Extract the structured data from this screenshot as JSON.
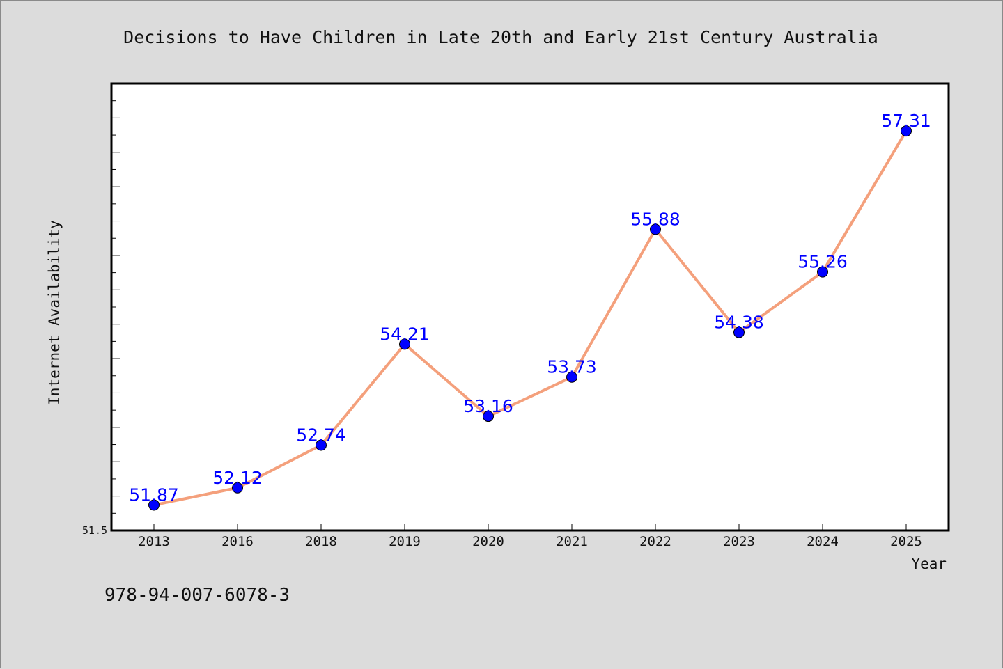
{
  "chart_data": {
    "type": "line",
    "title": "Decisions to Have Children in Late 20th and Early 21st Century Australia",
    "xlabel": "Year",
    "ylabel": "Internet Availability",
    "categories": [
      "2013",
      "2016",
      "2018",
      "2019",
      "2020",
      "2021",
      "2022",
      "2023",
      "2024",
      "2025"
    ],
    "series": [
      {
        "values": [
          51.87,
          52.12,
          52.74,
          54.21,
          53.16,
          53.73,
          55.88,
          54.38,
          55.26,
          57.31
        ],
        "labels": [
          "51.87",
          "52.12",
          "52.74",
          "54.21",
          "53.16",
          "53.73",
          "55.88",
          "54.38",
          "55.26",
          "57.31"
        ]
      }
    ],
    "ylim": [
      51.5,
      58.0
    ],
    "yticks_labeled": [
      "51.5"
    ],
    "grid": false,
    "legend": "none",
    "colors": {
      "line": "#f4a07c",
      "marker": "#0000ff",
      "data_label": "#0000ff",
      "background": "#dcdcdc",
      "plot_area": "#ffffff"
    }
  },
  "footer_text": "978-94-007-6078-3"
}
